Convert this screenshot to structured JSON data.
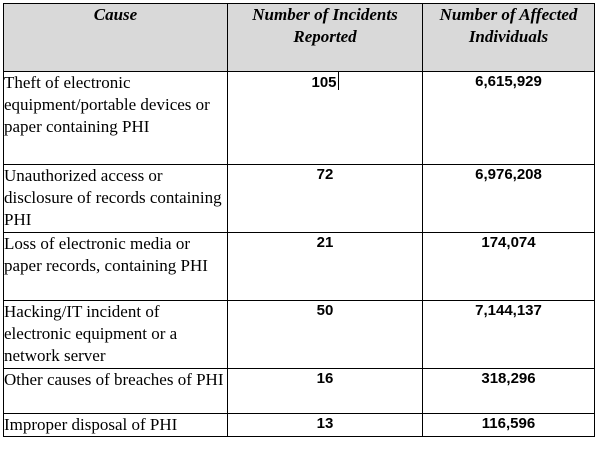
{
  "table": {
    "headers": {
      "cause": "Cause",
      "incidents": "Number of Incidents Reported",
      "individuals": "Number of Affected Individuals"
    },
    "rows": [
      {
        "cause": "Theft of electronic equipment/portable devices or paper containing PHI",
        "incidents": "105",
        "individuals": "6,615,929"
      },
      {
        "cause": "Unauthorized access or disclosure of records containing PHI",
        "incidents": "72",
        "individuals": "6,976,208"
      },
      {
        "cause": "Loss of electronic media or paper records, containing PHI",
        "incidents": "21",
        "individuals": "174,074"
      },
      {
        "cause": "Hacking/IT incident of electronic equipment or a network server",
        "incidents": "50",
        "individuals": "7,144,137"
      },
      {
        "cause": "Other causes of breaches of PHI",
        "incidents": "16",
        "individuals": "318,296"
      },
      {
        "cause": "Improper disposal of PHI",
        "incidents": "13",
        "individuals": "116,596"
      }
    ]
  }
}
